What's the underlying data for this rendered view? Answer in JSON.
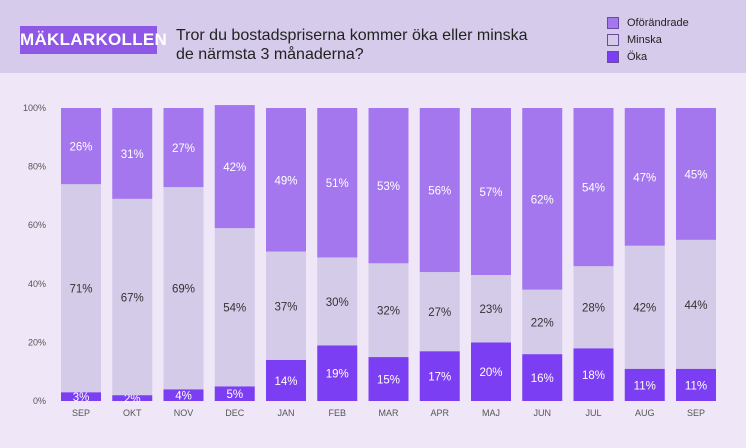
{
  "brand": "MÄKLARKOLLEN",
  "title": "Tror du bostadspriserna kommer öka eller minska de närmsta 3 månaderna?",
  "colors": {
    "oforandrade": "#a477ef",
    "minska": "#d4cbe8",
    "oka": "#7c3ef2",
    "background": "#efe7f8",
    "header": "#d6cbea"
  },
  "legend": [
    {
      "label": "Oförändrade",
      "color": "#a477ef"
    },
    {
      "label": "Minska",
      "color": "#d4cbe8"
    },
    {
      "label": "Öka",
      "color": "#7c3ef2"
    }
  ],
  "chart_data": {
    "type": "bar",
    "stacked": true,
    "title": "Tror du bostadspriserna kommer öka eller minska de närmsta 3 månaderna?",
    "categories": [
      "SEP",
      "OKT",
      "NOV",
      "DEC",
      "JAN",
      "FEB",
      "MAR",
      "APR",
      "MAJ",
      "JUN",
      "JUL",
      "AUG",
      "SEP"
    ],
    "series": [
      {
        "name": "Öka",
        "values": [
          3,
          2,
          4,
          5,
          14,
          19,
          15,
          17,
          20,
          16,
          18,
          11,
          11
        ]
      },
      {
        "name": "Minska",
        "values": [
          71,
          67,
          69,
          54,
          37,
          30,
          32,
          27,
          23,
          22,
          28,
          42,
          44
        ]
      },
      {
        "name": "Oförändrade",
        "values": [
          26,
          31,
          27,
          42,
          49,
          51,
          53,
          56,
          57,
          62,
          54,
          47,
          45
        ]
      }
    ],
    "yticks": [
      "0%",
      "20%",
      "40%",
      "60%",
      "80%",
      "100%"
    ],
    "ylim": [
      0,
      100
    ],
    "legend_position": "top-right"
  }
}
